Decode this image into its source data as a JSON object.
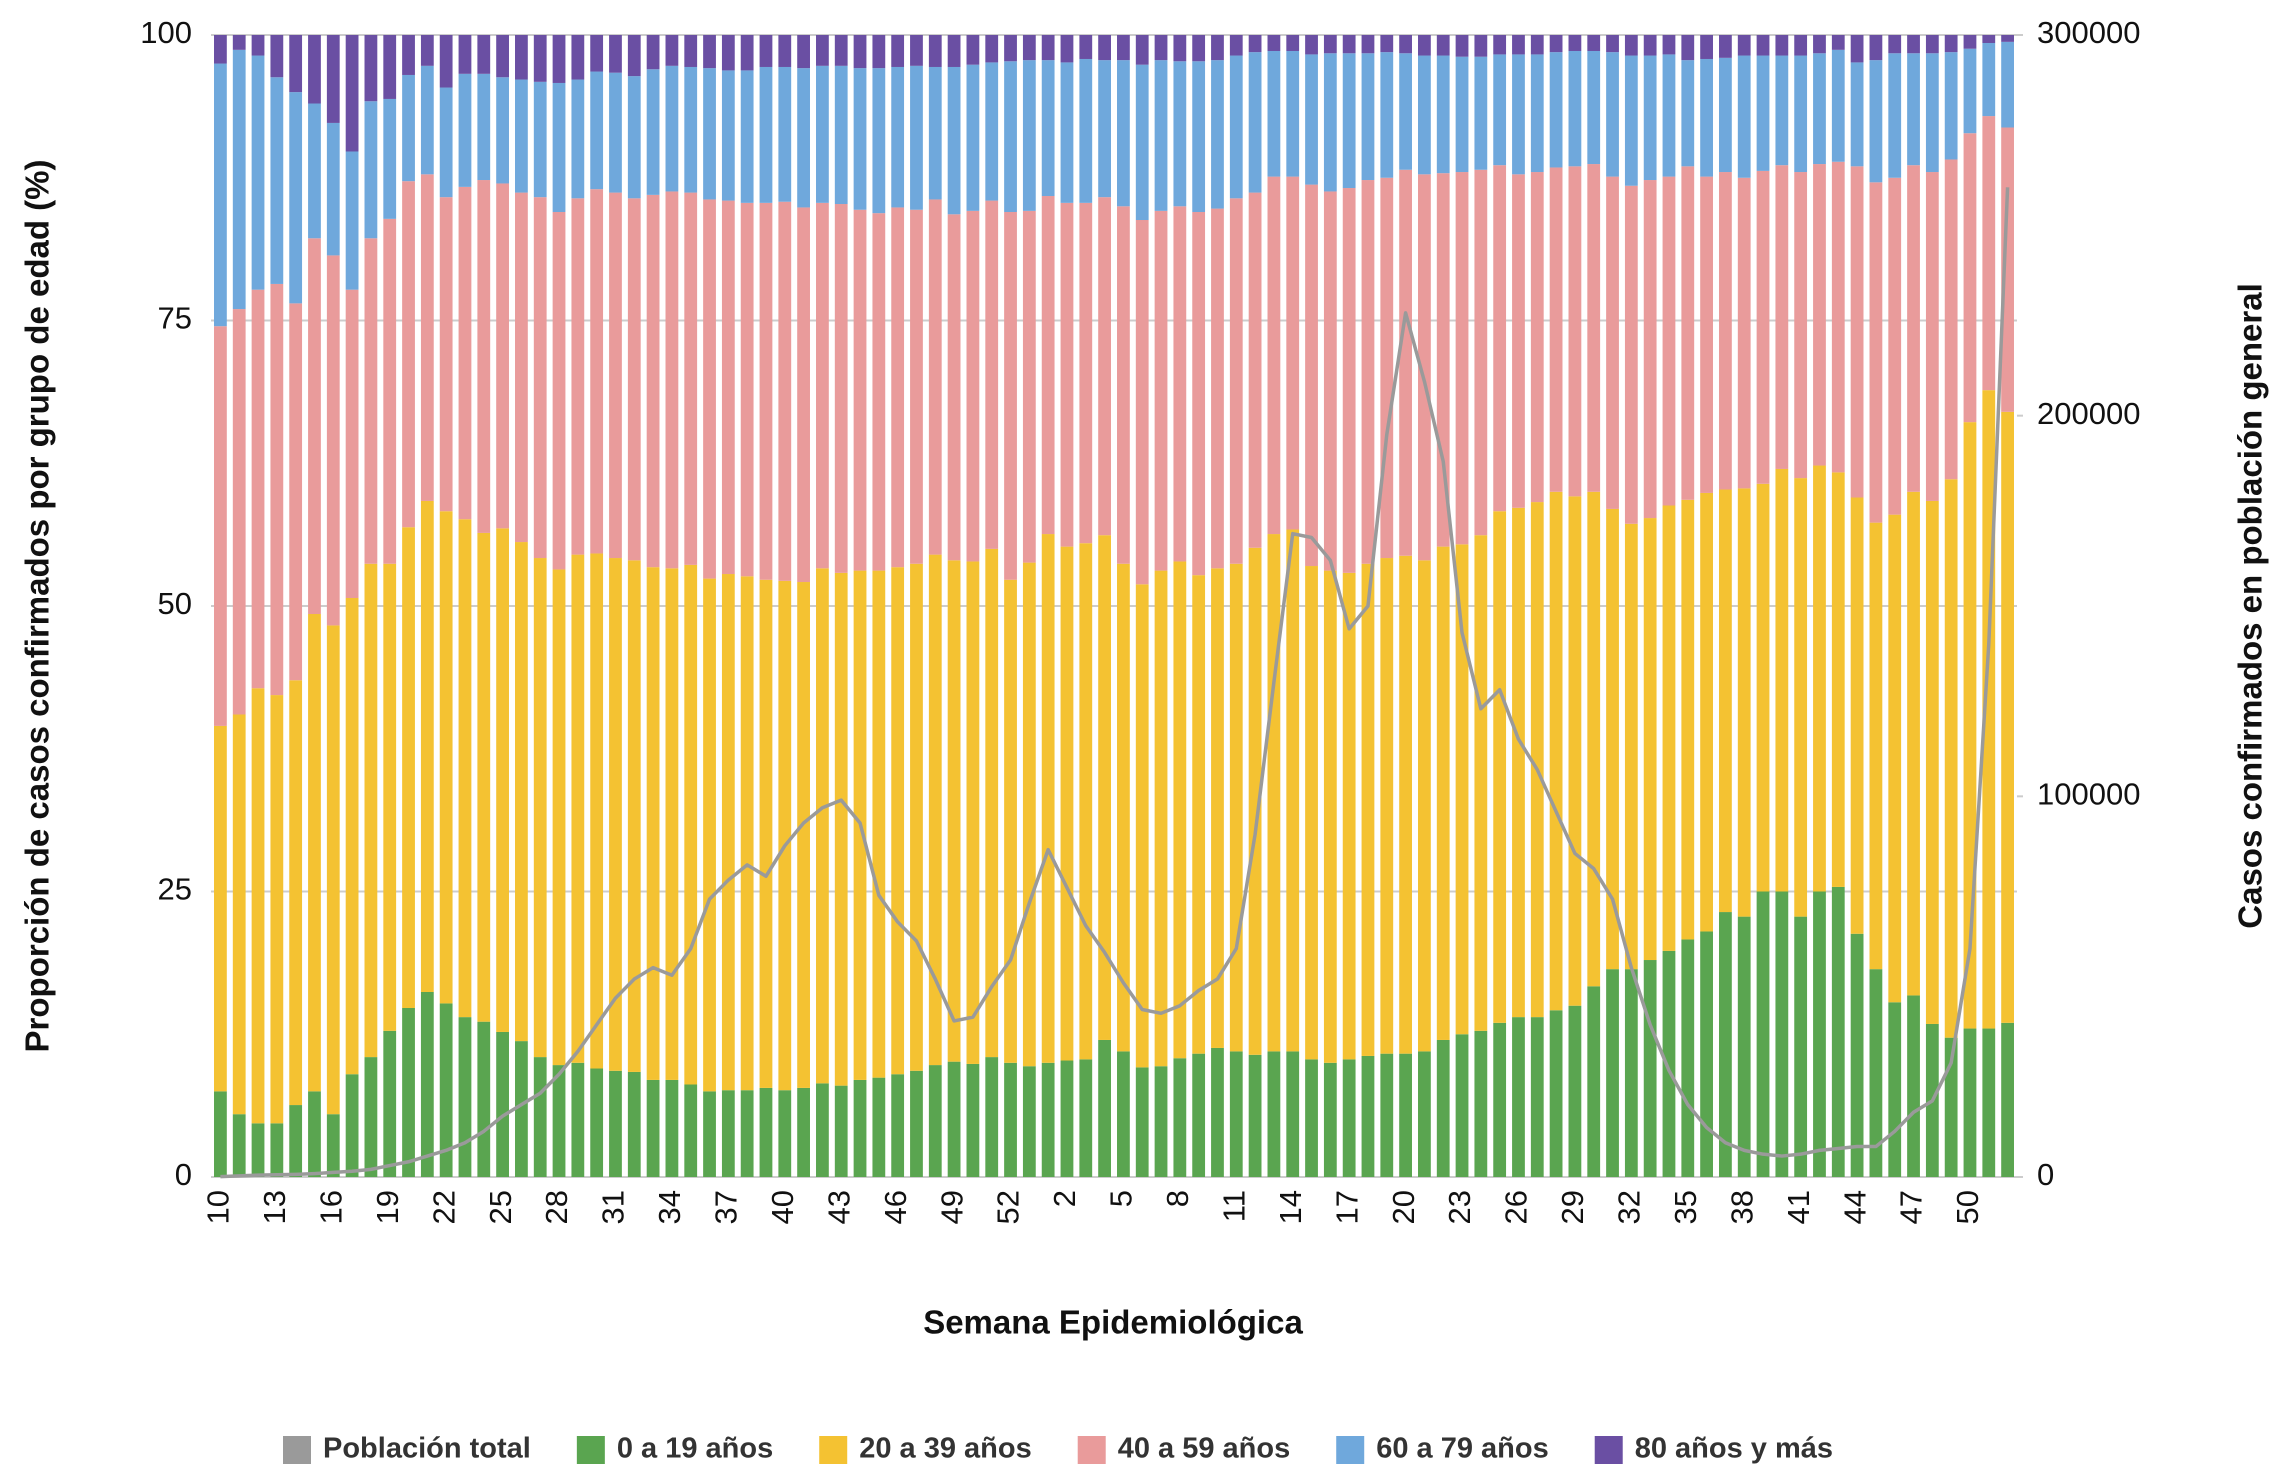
{
  "chart_data": {
    "type": "bar",
    "stacked": true,
    "x_label": "Semana Epidemiológica",
    "y_label": "Proporción de casos confirmados por grupo de edad (%)",
    "y2_label": "Casos confirmados en población general",
    "categories": [
      10,
      null,
      null,
      13,
      null,
      null,
      16,
      null,
      null,
      19,
      null,
      null,
      22,
      null,
      null,
      25,
      null,
      null,
      28,
      null,
      null,
      31,
      null,
      null,
      34,
      null,
      null,
      37,
      null,
      null,
      40,
      null,
      null,
      43,
      null,
      null,
      46,
      null,
      null,
      49,
      null,
      null,
      52,
      null,
      null,
      2,
      null,
      null,
      5,
      null,
      null,
      8,
      null,
      null,
      11,
      null,
      null,
      14,
      null,
      null,
      17,
      null,
      null,
      20,
      null,
      null,
      23,
      null,
      null,
      26,
      null,
      null,
      29,
      null,
      null,
      32,
      null,
      null,
      35,
      null,
      null,
      38,
      null,
      null,
      41,
      null,
      null,
      44,
      null,
      null,
      47,
      null,
      null,
      50,
      null,
      null
    ],
    "ylim": [
      0,
      100
    ],
    "yticks": [
      0,
      25,
      50,
      75,
      100
    ],
    "y2lim": [
      0,
      300000
    ],
    "y2ticks": [
      0,
      100000,
      200000,
      300000
    ],
    "grid": true,
    "legend": "bottom",
    "series": [
      {
        "name": "Población total",
        "type": "line",
        "axis": "y2",
        "color": "#9a9a9a",
        "values": [
          100,
          300,
          500,
          600,
          700,
          900,
          1200,
          1500,
          2000,
          3000,
          4000,
          5500,
          7000,
          9000,
          12000,
          16000,
          19000,
          22000,
          27000,
          33000,
          40000,
          47000,
          52000,
          55000,
          53000,
          60000,
          73000,
          78000,
          82000,
          79000,
          87000,
          93000,
          97000,
          99000,
          93000,
          74000,
          67000,
          62000,
          52000,
          41000,
          42000,
          50000,
          57000,
          72000,
          86000,
          76000,
          66000,
          59000,
          51000,
          44000,
          43000,
          45000,
          49000,
          52000,
          60000,
          90000,
          130000,
          169000,
          168000,
          162000,
          144000,
          150000,
          195000,
          227000,
          209000,
          188000,
          143000,
          123000,
          128000,
          115000,
          107000,
          96000,
          85000,
          81000,
          73000,
          55000,
          40000,
          28000,
          19000,
          13000,
          9000,
          7000,
          6000,
          5500,
          6000,
          7000,
          7500,
          8000,
          8000,
          12000,
          17000,
          20000,
          30000,
          60000,
          140000,
          260000
        ]
      },
      {
        "name": "0 a 19 años",
        "color": "#5aa550",
        "values": [
          7.5,
          5.5,
          4.7,
          4.7,
          6.3,
          7.5,
          5.5,
          9,
          10.5,
          12.8,
          14.8,
          16.2,
          15.2,
          14,
          13.6,
          12.7,
          11.9,
          10.5,
          9.8,
          10,
          9.5,
          9.3,
          9.2,
          8.5,
          8.5,
          8.1,
          7.5,
          7.6,
          7.6,
          7.8,
          7.6,
          7.8,
          8.2,
          8,
          8.5,
          8.7,
          9,
          9.3,
          9.8,
          10.1,
          9.9,
          10.5,
          10,
          9.7,
          10,
          10.2,
          10.3,
          12,
          11,
          9.6,
          9.7,
          10.4,
          10.8,
          11.3,
          11,
          10.7,
          11,
          11,
          10.3,
          10,
          10.3,
          10.6,
          10.8,
          10.8,
          11,
          12,
          12.5,
          12.8,
          13.5,
          14,
          14,
          14.6,
          15,
          16.7,
          18.2,
          18.2,
          19,
          19.8,
          20.8,
          21.5,
          23.2,
          22.8,
          25,
          25,
          22.8,
          25,
          25.4,
          21.3,
          18.2,
          15.3,
          15.9,
          13.4,
          12.2,
          13,
          13,
          13.5
        ]
      },
      {
        "name": "20 a 39 años",
        "color": "#f4c232",
        "values": [
          32,
          35,
          38.1,
          37.5,
          37.2,
          41.8,
          42.8,
          41.7,
          43.2,
          40.9,
          42.1,
          43,
          43.1,
          43.6,
          42.8,
          44.1,
          43.7,
          43.7,
          43.4,
          44.5,
          45.1,
          44.9,
          44.8,
          44.9,
          44.8,
          45.5,
          44.9,
          45.2,
          45,
          44.5,
          44.6,
          44.3,
          45.1,
          44.9,
          44.6,
          44.4,
          44.4,
          44.4,
          44.7,
          43.9,
          44,
          44.5,
          42.3,
          44.1,
          46.3,
          45,
          45.2,
          44.2,
          42.7,
          42.3,
          43.4,
          43.5,
          41.9,
          42,
          42.7,
          44.4,
          45.3,
          45.7,
          43.2,
          43.1,
          42.6,
          43.1,
          43.4,
          43.6,
          43,
          43.2,
          42.9,
          43.4,
          44.8,
          44.6,
          45.1,
          45.4,
          44.6,
          43.3,
          40.3,
          39,
          38.7,
          39,
          38.5,
          38.4,
          37,
          37.5,
          35.7,
          37,
          38.4,
          37.3,
          36.3,
          38.2,
          39.1,
          42.7,
          44.1,
          45.8,
          48.9,
          53.1,
          55.9,
          53.5
        ]
      },
      {
        "name": "40 a 59 años",
        "color": "#e99b9b",
        "values": [
          35,
          35.5,
          34.9,
          36,
          33,
          32.9,
          32.4,
          27,
          28.5,
          30.2,
          30.3,
          28.6,
          27.5,
          29.1,
          30.9,
          30.2,
          30.6,
          31.6,
          31.3,
          31.2,
          31.9,
          32,
          31.7,
          32.6,
          33,
          32.6,
          33.2,
          32.7,
          32.7,
          33,
          33.2,
          32.8,
          32,
          32.3,
          31.6,
          31.3,
          31.5,
          31,
          31.1,
          30.3,
          30.7,
          30.5,
          32.2,
          30.8,
          29.6,
          30.1,
          29.8,
          29.6,
          31.3,
          31.9,
          31.5,
          31.1,
          31.8,
          31.5,
          32,
          31.1,
          31.3,
          30.9,
          33.4,
          33.2,
          33.7,
          33.6,
          33.3,
          33.8,
          33.8,
          32.7,
          32.6,
          32,
          30.3,
          29.2,
          28.9,
          28.4,
          28.9,
          28.7,
          29.1,
          29.6,
          29.6,
          28.8,
          29.2,
          27.7,
          27.8,
          27.2,
          27.4,
          26.6,
          26.8,
          26.4,
          27.2,
          29,
          29.8,
          29.5,
          28.6,
          28.8,
          28,
          25.3,
          24,
          24.9
        ]
      },
      {
        "name": "60 a 79 años",
        "color": "#6fa8dc",
        "values": [
          23,
          22.7,
          20.5,
          18.1,
          18.5,
          11.8,
          11.6,
          12.1,
          12,
          10.5,
          9.3,
          9.5,
          9.6,
          9.9,
          9.3,
          9.3,
          9.9,
          10.1,
          11.3,
          10.4,
          10.3,
          10.5,
          10.7,
          11,
          11,
          11,
          11.5,
          11.4,
          11.6,
          11.9,
          11.8,
          12.2,
          12,
          12.1,
          12.4,
          12.7,
          12.3,
          12.6,
          11.6,
          12.9,
          12.8,
          12.1,
          13.2,
          13.2,
          11.9,
          12.3,
          12.6,
          12,
          12.8,
          13.6,
          13.2,
          12.7,
          13.2,
          13,
          12.5,
          12.3,
          11,
          11,
          11.4,
          12.1,
          11.8,
          11.1,
          11,
          10.2,
          10.4,
          10.3,
          10.1,
          9.9,
          9.7,
          10.5,
          10.3,
          10.1,
          10.1,
          9.9,
          10.9,
          11.4,
          10.9,
          10.7,
          9.3,
          10.3,
          10,
          10.7,
          10.1,
          9.6,
          10.2,
          9.7,
          9.8,
          9.1,
          10.7,
          10.9,
          9.8,
          10.4,
          9.4,
          7.4,
          6.4,
          7.5
        ]
      },
      {
        "name": "80 años y más",
        "color": "#6a4fa3",
        "values": [
          2.5,
          1.3,
          1.8,
          3.7,
          5,
          6,
          7.7,
          10.2,
          5.8,
          5.6,
          3.5,
          2.7,
          4.6,
          3.4,
          3.4,
          3.7,
          3.9,
          4.1,
          4.2,
          3.9,
          3.2,
          3.3,
          3.6,
          3,
          2.7,
          2.8,
          2.9,
          3.1,
          3.1,
          2.8,
          2.8,
          2.9,
          2.7,
          2.7,
          2.9,
          2.9,
          2.8,
          2.7,
          2.8,
          2.8,
          2.6,
          2.4,
          2.3,
          2.2,
          2.2,
          2.4,
          2.1,
          2.2,
          2.2,
          2.6,
          2.2,
          2.3,
          2.3,
          2.2,
          1.8,
          1.5,
          1.4,
          1.4,
          1.7,
          1.6,
          1.6,
          1.6,
          1.5,
          1.6,
          1.8,
          1.8,
          1.9,
          1.9,
          1.7,
          1.7,
          1.7,
          1.5,
          1.4,
          1.4,
          1.5,
          1.8,
          1.8,
          1.7,
          2.2,
          2.1,
          2,
          1.8,
          1.8,
          1.8,
          1.8,
          1.6,
          1.3,
          2.4,
          2.2,
          1.6,
          1.6,
          1.6,
          1.5,
          1.2,
          0.7,
          0.6
        ]
      }
    ]
  }
}
